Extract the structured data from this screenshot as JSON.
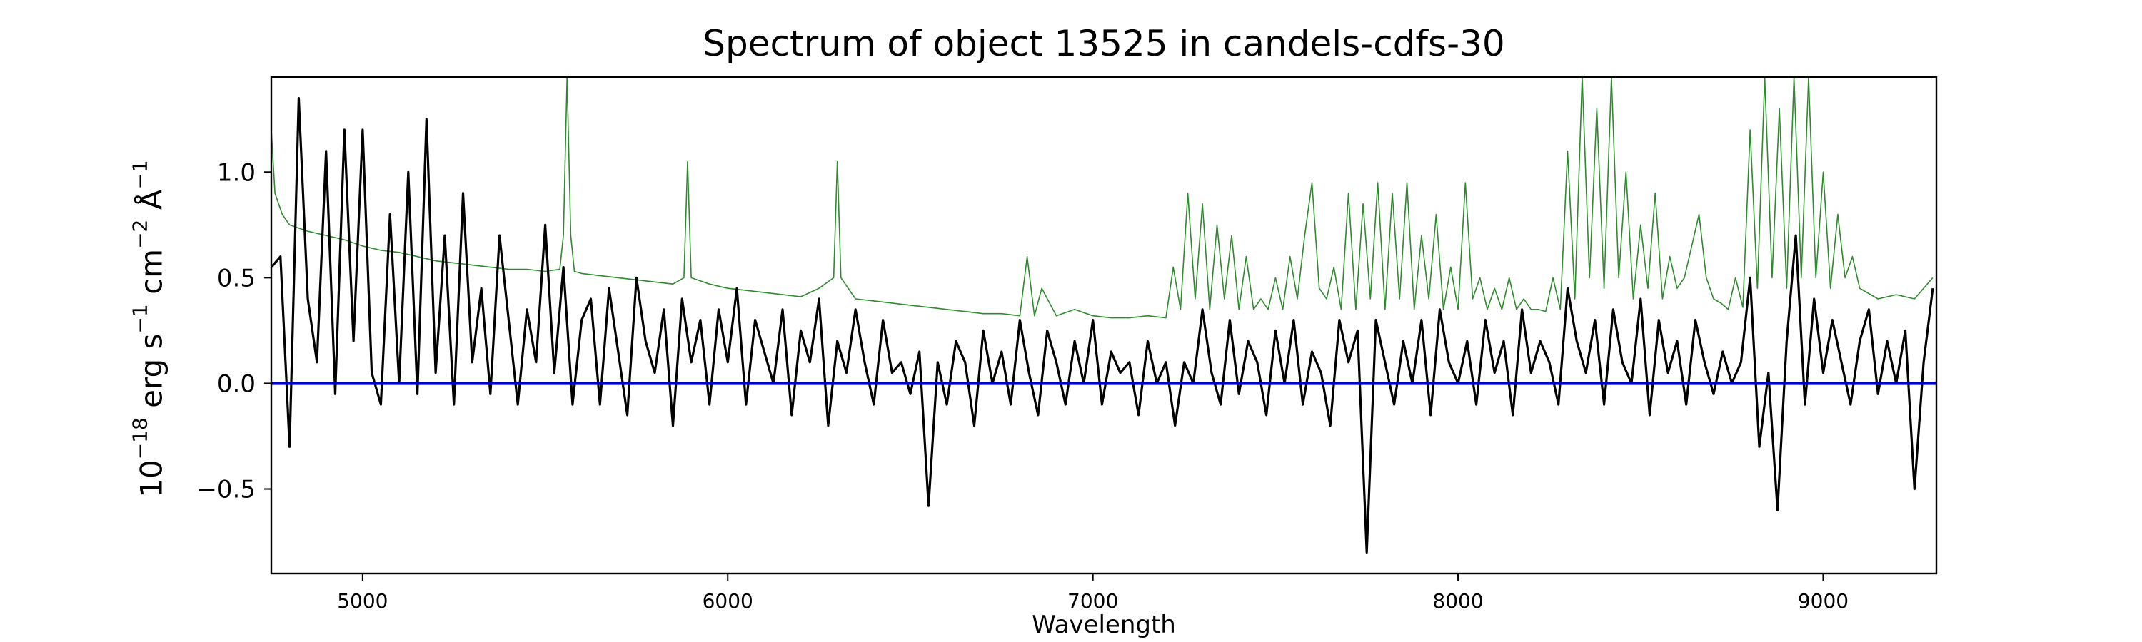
{
  "chart_data": {
    "type": "line",
    "title": "Spectrum of object 13525 in candels-cdfs-30",
    "xlabel": "Wavelength",
    "ylabel": {
      "base": "10",
      "base_exp": "−18",
      "u1": " erg s",
      "u1_exp": "−1",
      "u2": " cm",
      "u2_exp": "−2",
      "u3": " Å",
      "u3_exp": "−1"
    },
    "xlim": [
      4750,
      9310
    ],
    "ylim": [
      -0.9,
      1.45
    ],
    "xticks": [
      5000,
      6000,
      7000,
      8000,
      9000
    ],
    "yticks": [
      -0.5,
      0.0,
      0.5,
      1.0
    ],
    "xtick_labels": [
      "5000",
      "6000",
      "7000",
      "8000",
      "9000"
    ],
    "ytick_labels": [
      "−0.5",
      "0.0",
      "0.5",
      "1.0"
    ],
    "grid": false,
    "colors": {
      "flux": "#000000",
      "error": "#2e8b2e",
      "zero": "#0000cc"
    },
    "series": [
      {
        "role": "flux",
        "x": [
          4750,
          4775,
          4800,
          4825,
          4850,
          4875,
          4900,
          4925,
          4950,
          4975,
          5000,
          5025,
          5050,
          5075,
          5100,
          5125,
          5150,
          5175,
          5200,
          5225,
          5250,
          5275,
          5300,
          5325,
          5350,
          5375,
          5400,
          5425,
          5450,
          5475,
          5500,
          5525,
          5550,
          5575,
          5600,
          5625,
          5650,
          5675,
          5700,
          5725,
          5750,
          5775,
          5800,
          5825,
          5850,
          5875,
          5900,
          5925,
          5950,
          5975,
          6000,
          6025,
          6050,
          6075,
          6100,
          6125,
          6150,
          6175,
          6200,
          6225,
          6250,
          6275,
          6300,
          6325,
          6350,
          6375,
          6400,
          6425,
          6450,
          6475,
          6500,
          6525,
          6550,
          6575,
          6600,
          6625,
          6650,
          6675,
          6700,
          6725,
          6750,
          6775,
          6800,
          6825,
          6850,
          6875,
          6900,
          6925,
          6950,
          6975,
          7000,
          7025,
          7050,
          7075,
          7100,
          7125,
          7150,
          7175,
          7200,
          7225,
          7250,
          7275,
          7300,
          7325,
          7350,
          7375,
          7400,
          7425,
          7450,
          7475,
          7500,
          7525,
          7550,
          7575,
          7600,
          7625,
          7650,
          7675,
          7700,
          7725,
          7750,
          7775,
          7800,
          7825,
          7850,
          7875,
          7900,
          7925,
          7950,
          7975,
          8000,
          8025,
          8050,
          8075,
          8100,
          8125,
          8150,
          8175,
          8200,
          8225,
          8250,
          8275,
          8300,
          8325,
          8350,
          8375,
          8400,
          8425,
          8450,
          8475,
          8500,
          8525,
          8550,
          8575,
          8600,
          8625,
          8650,
          8675,
          8700,
          8725,
          8750,
          8775,
          8800,
          8825,
          8850,
          8875,
          8900,
          8925,
          8950,
          8975,
          9000,
          9025,
          9050,
          9075,
          9100,
          9125,
          9150,
          9175,
          9200,
          9225,
          9250,
          9275,
          9300
        ],
        "y": [
          0.55,
          0.6,
          -0.3,
          1.35,
          0.4,
          0.1,
          1.1,
          -0.05,
          1.2,
          0.2,
          1.2,
          0.05,
          -0.1,
          0.8,
          0.0,
          1.0,
          -0.05,
          1.25,
          0.05,
          0.7,
          -0.1,
          0.9,
          0.1,
          0.45,
          -0.05,
          0.7,
          0.3,
          -0.1,
          0.35,
          0.1,
          0.75,
          0.05,
          0.55,
          -0.1,
          0.3,
          0.4,
          -0.1,
          0.45,
          0.15,
          -0.15,
          0.5,
          0.2,
          0.05,
          0.35,
          -0.2,
          0.4,
          0.1,
          0.3,
          -0.1,
          0.35,
          0.1,
          0.45,
          -0.1,
          0.3,
          0.15,
          0.0,
          0.35,
          -0.15,
          0.25,
          0.1,
          0.4,
          -0.2,
          0.2,
          0.05,
          0.35,
          0.1,
          -0.1,
          0.3,
          0.05,
          0.1,
          -0.05,
          0.15,
          -0.58,
          0.1,
          -0.1,
          0.2,
          0.1,
          -0.2,
          0.25,
          0.0,
          0.15,
          -0.1,
          0.3,
          0.05,
          -0.15,
          0.25,
          0.1,
          -0.1,
          0.2,
          0.0,
          0.3,
          -0.1,
          0.15,
          0.05,
          0.1,
          -0.15,
          0.2,
          0.0,
          0.1,
          -0.2,
          0.1,
          0.0,
          0.35,
          0.05,
          -0.1,
          0.3,
          -0.05,
          0.2,
          0.1,
          -0.15,
          0.25,
          0.0,
          0.3,
          -0.1,
          0.15,
          0.05,
          -0.2,
          0.3,
          0.1,
          0.25,
          -0.8,
          0.3,
          0.1,
          -0.1,
          0.2,
          0.0,
          0.3,
          -0.15,
          0.35,
          0.1,
          0.0,
          0.2,
          -0.1,
          0.3,
          0.05,
          0.2,
          -0.15,
          0.35,
          0.05,
          0.2,
          0.1,
          -0.1,
          0.45,
          0.2,
          0.05,
          0.3,
          -0.1,
          0.35,
          0.1,
          0.0,
          0.4,
          -0.15,
          0.3,
          0.05,
          0.2,
          -0.1,
          0.3,
          0.1,
          -0.05,
          0.15,
          0.0,
          0.1,
          0.5,
          -0.3,
          0.05,
          -0.6,
          0.2,
          0.7,
          -0.1,
          0.4,
          0.05,
          0.3,
          0.1,
          -0.1,
          0.2,
          0.35,
          -0.05,
          0.2,
          0.0,
          0.25,
          -0.5,
          0.1,
          0.45
        ]
      },
      {
        "role": "error",
        "x": [
          4750,
          4760,
          4780,
          4800,
          4850,
          4900,
          4950,
          5000,
          5050,
          5100,
          5150,
          5200,
          5250,
          5300,
          5350,
          5400,
          5450,
          5500,
          5540,
          5550,
          5560,
          5570,
          5580,
          5600,
          5650,
          5700,
          5750,
          5800,
          5850,
          5880,
          5890,
          5900,
          5950,
          6000,
          6050,
          6100,
          6150,
          6200,
          6250,
          6290,
          6300,
          6310,
          6350,
          6400,
          6450,
          6500,
          6550,
          6600,
          6650,
          6700,
          6750,
          6800,
          6820,
          6840,
          6860,
          6900,
          6950,
          7000,
          7050,
          7100,
          7150,
          7200,
          7220,
          7240,
          7260,
          7280,
          7300,
          7320,
          7340,
          7360,
          7380,
          7400,
          7420,
          7440,
          7460,
          7480,
          7500,
          7520,
          7540,
          7560,
          7580,
          7600,
          7620,
          7640,
          7660,
          7680,
          7700,
          7720,
          7740,
          7760,
          7780,
          7800,
          7820,
          7840,
          7860,
          7880,
          7900,
          7920,
          7940,
          7960,
          7980,
          8000,
          8020,
          8040,
          8060,
          8080,
          8100,
          8120,
          8140,
          8160,
          8180,
          8200,
          8220,
          8240,
          8260,
          8280,
          8300,
          8320,
          8340,
          8360,
          8380,
          8400,
          8420,
          8440,
          8460,
          8480,
          8500,
          8520,
          8540,
          8560,
          8580,
          8600,
          8620,
          8640,
          8660,
          8680,
          8700,
          8720,
          8740,
          8760,
          8780,
          8800,
          8820,
          8840,
          8860,
          8880,
          8900,
          8920,
          8940,
          8960,
          8980,
          9000,
          9020,
          9040,
          9060,
          9080,
          9100,
          9150,
          9200,
          9250,
          9300
        ],
        "y": [
          1.2,
          0.9,
          0.8,
          0.75,
          0.72,
          0.7,
          0.68,
          0.65,
          0.63,
          0.62,
          0.6,
          0.58,
          0.57,
          0.56,
          0.55,
          0.54,
          0.54,
          0.53,
          0.54,
          0.7,
          1.45,
          0.7,
          0.53,
          0.52,
          0.51,
          0.5,
          0.49,
          0.48,
          0.47,
          0.5,
          1.05,
          0.5,
          0.47,
          0.45,
          0.44,
          0.43,
          0.42,
          0.41,
          0.45,
          0.5,
          1.05,
          0.5,
          0.4,
          0.39,
          0.38,
          0.37,
          0.36,
          0.35,
          0.34,
          0.33,
          0.33,
          0.32,
          0.6,
          0.32,
          0.45,
          0.32,
          0.35,
          0.32,
          0.31,
          0.31,
          0.32,
          0.31,
          0.55,
          0.35,
          0.9,
          0.4,
          0.85,
          0.35,
          0.75,
          0.4,
          0.7,
          0.35,
          0.6,
          0.35,
          0.4,
          0.35,
          0.5,
          0.35,
          0.6,
          0.4,
          0.7,
          0.95,
          0.45,
          0.4,
          0.55,
          0.35,
          0.9,
          0.35,
          0.85,
          0.4,
          0.95,
          0.35,
          0.9,
          0.4,
          0.95,
          0.35,
          0.7,
          0.4,
          0.8,
          0.35,
          0.55,
          0.35,
          0.95,
          0.4,
          0.5,
          0.35,
          0.45,
          0.35,
          0.5,
          0.35,
          0.4,
          0.35,
          0.35,
          0.34,
          0.5,
          0.35,
          1.1,
          0.4,
          1.45,
          0.5,
          1.3,
          0.45,
          1.45,
          0.5,
          1.0,
          0.4,
          0.75,
          0.45,
          0.9,
          0.4,
          0.6,
          0.45,
          0.5,
          0.65,
          0.8,
          0.5,
          0.4,
          0.38,
          0.35,
          0.5,
          0.36,
          1.2,
          0.45,
          1.45,
          0.5,
          1.3,
          0.45,
          1.45,
          0.5,
          1.45,
          0.5,
          1.0,
          0.45,
          0.8,
          0.5,
          0.6,
          0.45,
          0.4,
          0.42,
          0.4,
          0.5
        ]
      },
      {
        "role": "zero",
        "x": [
          4750,
          9310
        ],
        "y": [
          0,
          0
        ]
      }
    ]
  }
}
